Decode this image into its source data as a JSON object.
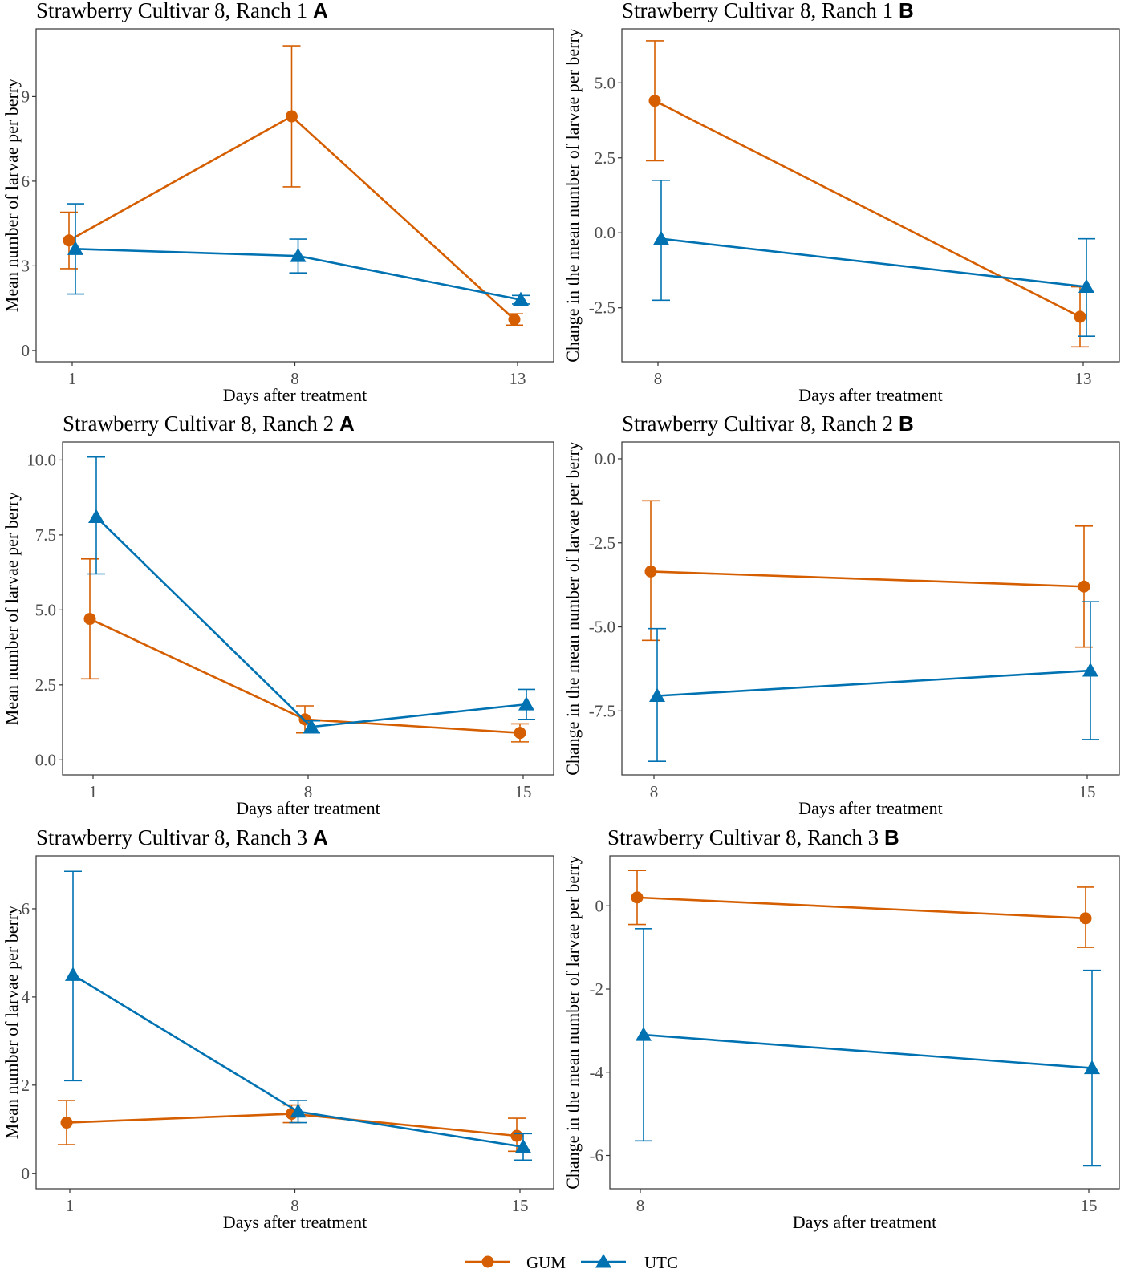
{
  "legend": {
    "items": [
      {
        "label": "GUM",
        "color": "#D55E00",
        "marker": "circle"
      },
      {
        "label": "UTC",
        "color": "#0072B2",
        "marker": "triangle"
      }
    ]
  },
  "chart_data": [
    {
      "type": "line",
      "title": "Strawberry Cultivar 8, Ranch 1",
      "panel_letter": "A",
      "xlabel": "Days after treatment",
      "ylabel": "Mean number of larvae per berry",
      "x": [
        "1",
        "8",
        "13"
      ],
      "yticks": [
        "0",
        "3",
        "6",
        "9"
      ],
      "ylim": [
        -0.4,
        11.4
      ],
      "series": [
        {
          "name": "GUM",
          "values": [
            3.9,
            8.3,
            1.1
          ],
          "lower": [
            2.9,
            5.8,
            0.9
          ],
          "upper": [
            4.9,
            10.8,
            1.3
          ]
        },
        {
          "name": "UTC",
          "values": [
            3.6,
            3.35,
            1.8
          ],
          "lower": [
            2.0,
            2.75,
            1.65
          ],
          "upper": [
            5.2,
            3.95,
            1.95
          ]
        }
      ]
    },
    {
      "type": "line",
      "title": "Strawberry Cultivar 8, Ranch 1",
      "panel_letter": "B",
      "xlabel": "Days after treatment",
      "ylabel": "Change in the mean number of larvae per berry",
      "x": [
        "8",
        "13"
      ],
      "yticks": [
        "-2.5",
        "0.0",
        "2.5",
        "5.0"
      ],
      "ylim": [
        -4.3,
        6.8
      ],
      "series": [
        {
          "name": "GUM",
          "values": [
            4.4,
            -2.8
          ],
          "lower": [
            2.4,
            -3.8
          ],
          "upper": [
            6.4,
            -1.8
          ]
        },
        {
          "name": "UTC",
          "values": [
            -0.2,
            -1.8
          ],
          "lower": [
            -2.25,
            -3.45
          ],
          "upper": [
            1.75,
            -0.2
          ]
        }
      ]
    },
    {
      "type": "line",
      "title": "Strawberry Cultivar 8, Ranch 2",
      "panel_letter": "A",
      "xlabel": "Days after treatment",
      "ylabel": "Mean number of larvae per berry",
      "x": [
        "1",
        "8",
        "15"
      ],
      "yticks": [
        "0.0",
        "2.5",
        "5.0",
        "7.5",
        "10.0"
      ],
      "ylim": [
        -0.5,
        10.6
      ],
      "series": [
        {
          "name": "GUM",
          "values": [
            4.7,
            1.35,
            0.9
          ],
          "lower": [
            2.7,
            0.9,
            0.6
          ],
          "upper": [
            6.7,
            1.8,
            1.2
          ]
        },
        {
          "name": "UTC",
          "values": [
            8.1,
            1.1,
            1.85
          ],
          "lower": [
            6.2,
            0.9,
            1.35
          ],
          "upper": [
            10.1,
            1.3,
            2.35
          ]
        }
      ]
    },
    {
      "type": "line",
      "title": "Strawberry Cultivar 8, Ranch 2",
      "panel_letter": "B",
      "xlabel": "Days after treatment",
      "ylabel": "Change in the mean number of larvae per berry",
      "x": [
        "8",
        "15"
      ],
      "yticks": [
        "-7.5",
        "-5.0",
        "-2.5",
        "0.0"
      ],
      "ylim": [
        -9.4,
        0.5
      ],
      "series": [
        {
          "name": "GUM",
          "values": [
            -3.35,
            -3.8
          ],
          "lower": [
            -5.4,
            -5.6
          ],
          "upper": [
            -1.25,
            -2.0
          ]
        },
        {
          "name": "UTC",
          "values": [
            -7.05,
            -6.3
          ],
          "lower": [
            -9.0,
            -8.35
          ],
          "upper": [
            -5.05,
            -4.25
          ]
        }
      ]
    },
    {
      "type": "line",
      "title": "Strawberry Cultivar 8, Ranch 3",
      "panel_letter": "A",
      "xlabel": "Days after treatment",
      "ylabel": "Mean number of larvae per berry",
      "x": [
        "1",
        "8",
        "15"
      ],
      "yticks": [
        "0",
        "2",
        "4",
        "6"
      ],
      "ylim": [
        -0.35,
        7.2
      ],
      "series": [
        {
          "name": "GUM",
          "values": [
            1.15,
            1.35,
            0.85
          ],
          "lower": [
            0.65,
            1.15,
            0.5
          ],
          "upper": [
            1.65,
            1.55,
            1.25
          ]
        },
        {
          "name": "UTC",
          "values": [
            4.5,
            1.4,
            0.6
          ],
          "lower": [
            2.1,
            1.15,
            0.3
          ],
          "upper": [
            6.85,
            1.65,
            0.9
          ]
        }
      ]
    },
    {
      "type": "line",
      "title": "Strawberry Cultivar 8, Ranch 3",
      "panel_letter": "B",
      "xlabel": "Days after treatment",
      "ylabel": "Change in the mean number of larvae per berry",
      "x": [
        "8",
        "15"
      ],
      "yticks": [
        "-6",
        "-4",
        "-2",
        "0"
      ],
      "ylim": [
        -6.8,
        1.2
      ],
      "series": [
        {
          "name": "GUM",
          "values": [
            0.2,
            -0.3
          ],
          "lower": [
            -0.45,
            -1.0
          ],
          "upper": [
            0.85,
            0.45
          ]
        },
        {
          "name": "UTC",
          "values": [
            -3.1,
            -3.9
          ],
          "lower": [
            -5.65,
            -6.25
          ],
          "upper": [
            -0.55,
            -1.55
          ]
        }
      ]
    }
  ]
}
